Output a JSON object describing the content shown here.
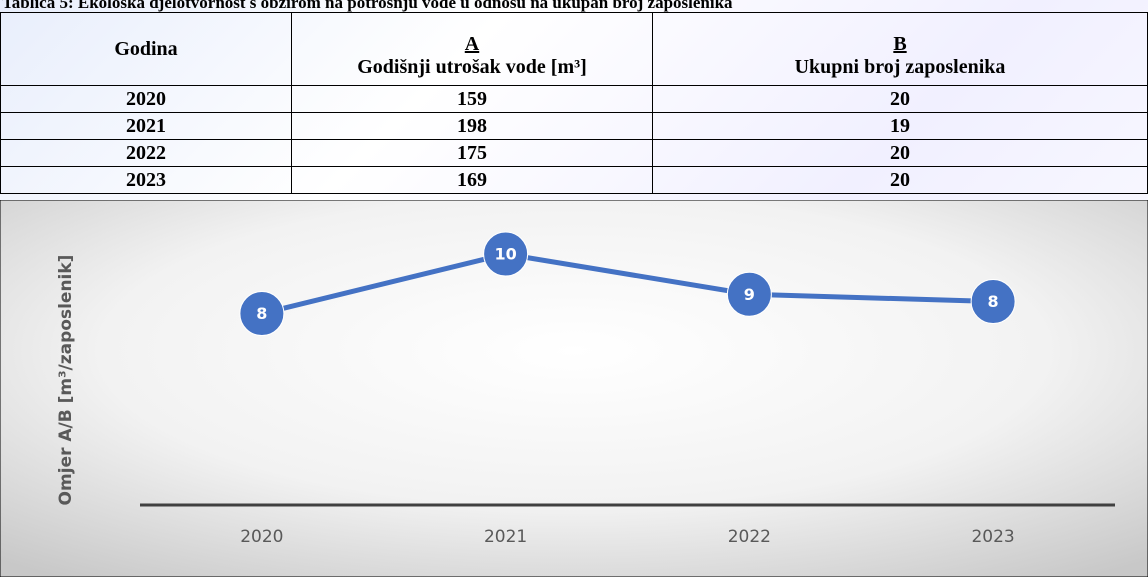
{
  "caption": "Tablica 5: Ekološka djelotvornost s obzirom na potrošnju vode u odnosu na ukupan broj zaposlenika",
  "table": {
    "columns": [
      {
        "name": "Godina"
      },
      {
        "letter": "A",
        "name": "Godišnji utrošak vode [m³]"
      },
      {
        "letter": "B",
        "name": "Ukupni broj zaposlenika"
      }
    ],
    "rows": [
      [
        "2020",
        "159",
        "20"
      ],
      [
        "2021",
        "198",
        "19"
      ],
      [
        "2022",
        "175",
        "20"
      ],
      [
        "2023",
        "169",
        "20"
      ]
    ]
  },
  "chart_data": {
    "type": "line",
    "y_label": "Omjer A/B [m³/zaposlenik]",
    "categories": [
      "2020",
      "2021",
      "2022",
      "2023"
    ],
    "values": [
      7.95,
      10.42,
      8.75,
      8.45
    ],
    "value_labels": [
      "8",
      "10",
      "9",
      "8"
    ],
    "color": "#4472c4",
    "ylim": [
      0,
      12
    ]
  }
}
